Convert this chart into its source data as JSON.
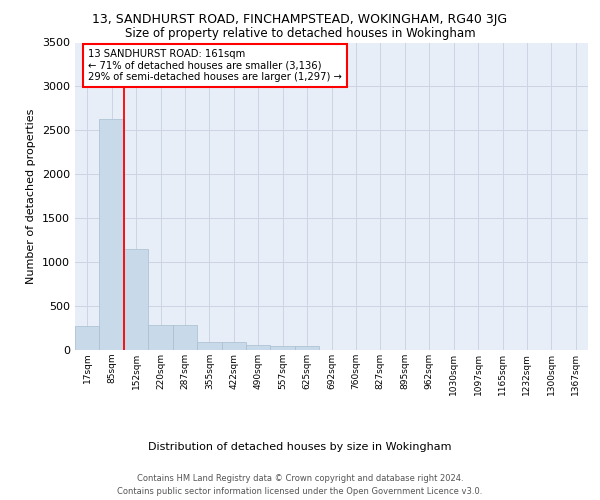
{
  "title_line1": "13, SANDHURST ROAD, FINCHAMPSTEAD, WOKINGHAM, RG40 3JG",
  "title_line2": "Size of property relative to detached houses in Wokingham",
  "xlabel": "Distribution of detached houses by size in Wokingham",
  "ylabel": "Number of detached properties",
  "bin_labels": [
    "17sqm",
    "85sqm",
    "152sqm",
    "220sqm",
    "287sqm",
    "355sqm",
    "422sqm",
    "490sqm",
    "557sqm",
    "625sqm",
    "692sqm",
    "760sqm",
    "827sqm",
    "895sqm",
    "962sqm",
    "1030sqm",
    "1097sqm",
    "1165sqm",
    "1232sqm",
    "1300sqm",
    "1367sqm"
  ],
  "bar_values": [
    270,
    2630,
    1155,
    280,
    280,
    90,
    90,
    55,
    45,
    45,
    0,
    0,
    0,
    0,
    0,
    0,
    0,
    0,
    0,
    0,
    0
  ],
  "bar_color": "#c8d9ea",
  "bar_edge_color": "#a8bfd0",
  "grid_color": "#cdd5e5",
  "background_color": "#e8eef8",
  "annotation_box_text": "13 SANDHURST ROAD: 161sqm\n← 71% of detached houses are smaller (3,136)\n29% of semi-detached houses are larger (1,297) →",
  "annotation_box_color": "white",
  "annotation_box_edge_color": "red",
  "red_line_x": 1.5,
  "ylim": [
    0,
    3500
  ],
  "yticks": [
    0,
    500,
    1000,
    1500,
    2000,
    2500,
    3000,
    3500
  ],
  "footer_line1": "Contains HM Land Registry data © Crown copyright and database right 2024.",
  "footer_line2": "Contains public sector information licensed under the Open Government Licence v3.0."
}
